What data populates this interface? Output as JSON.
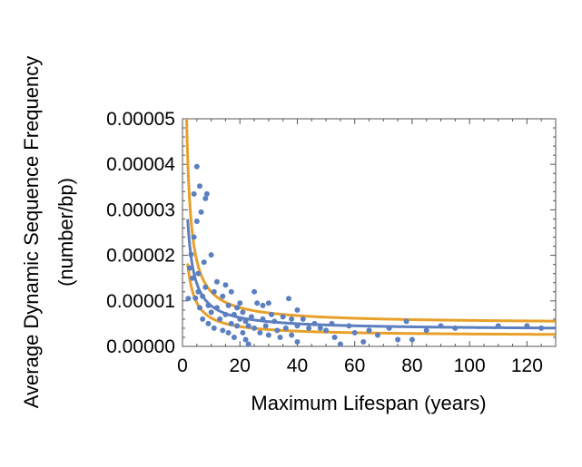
{
  "chart_data": {
    "type": "scatter",
    "title": "",
    "xlabel": "Maximum Lifespan (years)",
    "ylabel_line1": "Average Dynamic Sequence Frequency",
    "ylabel_line2": "(number/bp)",
    "xlim": [
      0,
      130
    ],
    "ylim": [
      0,
      5e-05
    ],
    "x_ticks": [
      0,
      20,
      40,
      60,
      80,
      100,
      120
    ],
    "x_tick_labels": [
      "0",
      "20",
      "40",
      "60",
      "80",
      "100",
      "120"
    ],
    "y_ticks": [
      0,
      1e-05,
      2e-05,
      3e-05,
      4e-05,
      5e-05
    ],
    "y_tick_labels": [
      "0.00000",
      "0.00001",
      "0.00002",
      "0.00003",
      "0.00004",
      "0.00005"
    ],
    "grid": false,
    "colors": {
      "points": "#5b7fbf",
      "fit": "#5b7fbf",
      "band": "#e8a02a"
    },
    "points": [
      [
        2,
        1.05e-05
      ],
      [
        2.5,
        1.72e-05
      ],
      [
        3,
        2.02e-05
      ],
      [
        3.5,
        1.5e-05
      ],
      [
        4,
        3.35e-05
      ],
      [
        4,
        2.4e-05
      ],
      [
        4.5,
        1.06e-05
      ],
      [
        5,
        3.95e-05
      ],
      [
        5,
        2.75e-05
      ],
      [
        5.5,
        1.6e-05
      ],
      [
        5.5,
        1.2e-05
      ],
      [
        6,
        3.52e-05
      ],
      [
        6,
        8.5e-06
      ],
      [
        6.5,
        2.95e-05
      ],
      [
        7,
        6e-06
      ],
      [
        7,
        1.1e-05
      ],
      [
        7.5,
        1.85e-05
      ],
      [
        8,
        3.25e-05
      ],
      [
        8,
        1.3e-05
      ],
      [
        8.5,
        3.35e-05
      ],
      [
        9,
        9e-06
      ],
      [
        9,
        5e-06
      ],
      [
        10,
        2.01e-05
      ],
      [
        10,
        7.5e-06
      ],
      [
        11,
        1.2e-05
      ],
      [
        11,
        4e-06
      ],
      [
        12,
        1.42e-05
      ],
      [
        12,
        8.5e-06
      ],
      [
        13,
        6e-06
      ],
      [
        14,
        1.1e-05
      ],
      [
        14,
        3.5e-06
      ],
      [
        15,
        1.35e-05
      ],
      [
        15,
        7e-06
      ],
      [
        16,
        9e-06
      ],
      [
        16,
        3e-06
      ],
      [
        17,
        1.2e-05
      ],
      [
        17,
        5e-06
      ],
      [
        18,
        7e-06
      ],
      [
        18,
        2e-06
      ],
      [
        19,
        8.5e-06
      ],
      [
        19,
        4.5e-06
      ],
      [
        20,
        9.5e-06
      ],
      [
        20,
        6e-06
      ],
      [
        21,
        3e-06
      ],
      [
        21,
        7.5e-06
      ],
      [
        22,
        5.5e-06
      ],
      [
        22,
        1.5e-06
      ],
      [
        23,
        4.5e-06
      ],
      [
        23,
        5e-07
      ],
      [
        24,
        6.5e-06
      ],
      [
        25,
        1.2e-05
      ],
      [
        25,
        4e-06
      ],
      [
        26,
        9.5e-06
      ],
      [
        27,
        3e-06
      ],
      [
        28,
        9e-06
      ],
      [
        28,
        6e-06
      ],
      [
        29,
        4.5e-06
      ],
      [
        30,
        9.5e-06
      ],
      [
        30,
        2.5e-06
      ],
      [
        31,
        7e-06
      ],
      [
        32,
        5.5e-06
      ],
      [
        33,
        3.5e-06
      ],
      [
        34,
        2e-06
      ],
      [
        35,
        6.5e-06
      ],
      [
        36,
        4e-06
      ],
      [
        37,
        1.05e-05
      ],
      [
        38,
        6e-06
      ],
      [
        38,
        2.5e-06
      ],
      [
        40,
        8e-06
      ],
      [
        40,
        4.5e-06
      ],
      [
        40,
        1e-06
      ],
      [
        42,
        6e-06
      ],
      [
        44,
        4e-06
      ],
      [
        46,
        5e-06
      ],
      [
        48,
        4e-06
      ],
      [
        50,
        3.5e-06
      ],
      [
        52,
        5e-06
      ],
      [
        53,
        2e-06
      ],
      [
        55,
        5e-07
      ],
      [
        58,
        4.5e-06
      ],
      [
        60,
        3e-06
      ],
      [
        63,
        1e-06
      ],
      [
        65,
        3.5e-06
      ],
      [
        68,
        2.5e-06
      ],
      [
        72,
        4e-06
      ],
      [
        75,
        1.5e-06
      ],
      [
        78,
        5.5e-06
      ],
      [
        80,
        1.5e-06
      ],
      [
        85,
        3.5e-06
      ],
      [
        90,
        4.5e-06
      ],
      [
        95,
        4e-06
      ],
      [
        110,
        4.5e-06
      ],
      [
        120,
        4.5e-06
      ],
      [
        125,
        4e-06
      ]
    ],
    "fit_curve": {
      "model": "a / (x + b) + c",
      "a": 5.6e-05,
      "b": 0.5,
      "c": 3.6e-06
    },
    "band_upper": {
      "model": "a / (x + b) + c",
      "a": 7.1e-05,
      "b": 0.15,
      "c": 5e-06
    },
    "band_lower": {
      "model": "a / (x + b) + c",
      "a": 4.3e-05,
      "b": 0.9,
      "c": 2.3e-06
    }
  }
}
